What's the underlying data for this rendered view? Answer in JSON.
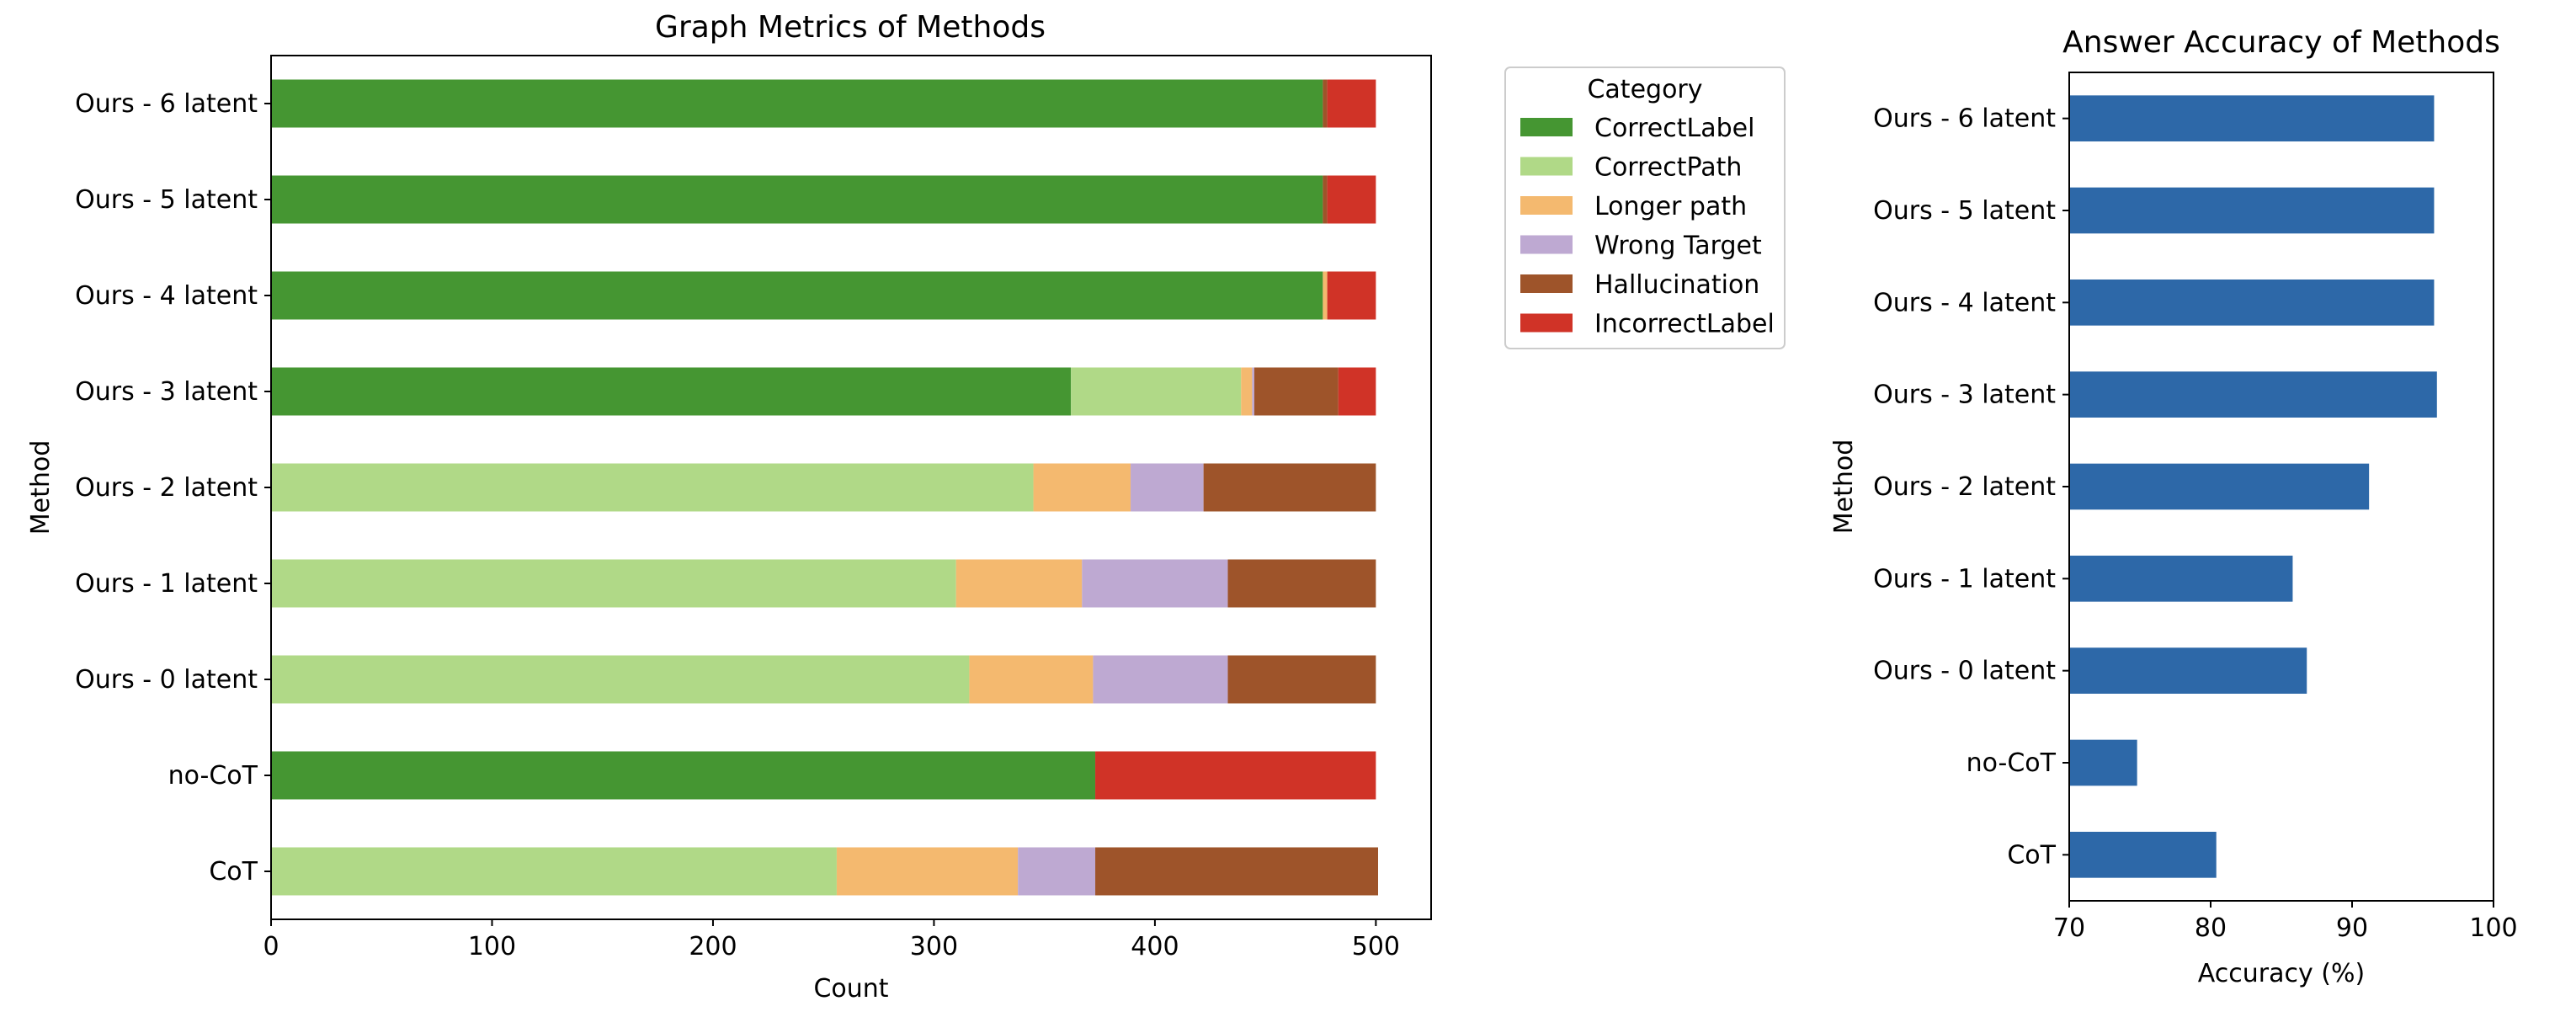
{
  "chart_data": [
    {
      "type": "bar",
      "orientation": "horizontal",
      "stacked": true,
      "title": "Graph Metrics of Methods",
      "xlabel": "Count",
      "ylabel": "Method",
      "xlim": [
        0,
        525
      ],
      "xticks": [
        0,
        100,
        200,
        300,
        400,
        500
      ],
      "categories": [
        "CoT",
        "no-CoT",
        "Ours - 0 latent",
        "Ours - 1 latent",
        "Ours - 2 latent",
        "Ours - 3 latent",
        "Ours - 4 latent",
        "Ours - 5 latent",
        "Ours - 6 latent"
      ],
      "legend": {
        "title": "Category",
        "placement": "outside-upper-right"
      },
      "series": [
        {
          "name": "CorrectLabel",
          "color": "#459632",
          "values": [
            0,
            373,
            0,
            0,
            0,
            362,
            476,
            476,
            476
          ]
        },
        {
          "name": "CorrectPath",
          "color": "#b0d987",
          "values": [
            256,
            0,
            316,
            310,
            345,
            77,
            0,
            0,
            0
          ]
        },
        {
          "name": "Longer path",
          "color": "#f4b96f",
          "values": [
            82,
            0,
            56,
            57,
            44,
            5,
            2,
            0,
            0
          ]
        },
        {
          "name": "Wrong Target",
          "color": "#bea9d2",
          "values": [
            35,
            0,
            61,
            66,
            33,
            1,
            0,
            0,
            0
          ]
        },
        {
          "name": "Hallucination",
          "color": "#9e542a",
          "values": [
            128,
            0,
            67,
            67,
            78,
            38,
            0,
            2,
            2
          ]
        },
        {
          "name": "IncorrectLabel",
          "color": "#d03327",
          "values": [
            0,
            127,
            0,
            0,
            0,
            17,
            22,
            22,
            22
          ]
        }
      ]
    },
    {
      "type": "bar",
      "orientation": "horizontal",
      "title": "Answer Accuracy of Methods",
      "xlabel": "Accuracy (%)",
      "ylabel": "Method",
      "xlim": [
        70,
        100
      ],
      "xticks": [
        70,
        80,
        90,
        100
      ],
      "color": "#2d68a8",
      "categories": [
        "CoT",
        "no-CoT",
        "Ours - 0 latent",
        "Ours - 1 latent",
        "Ours - 2 latent",
        "Ours - 3 latent",
        "Ours - 4 latent",
        "Ours - 5 latent",
        "Ours - 6 latent"
      ],
      "values": [
        80.4,
        74.8,
        86.8,
        85.8,
        91.2,
        96.0,
        95.8,
        95.8,
        95.8
      ]
    }
  ]
}
